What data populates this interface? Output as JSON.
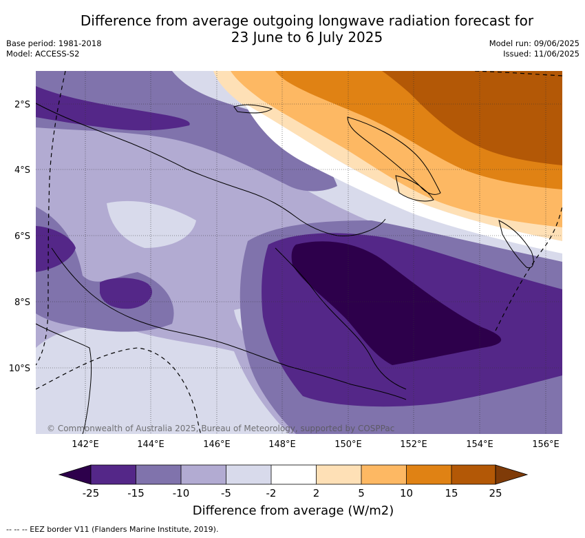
{
  "title": {
    "line1": "Difference from average outgoing longwave radiation forecast for",
    "line2": "23 June to 6 July 2025"
  },
  "meta_left": {
    "base_period": "Base period: 1981-2018",
    "model": "Model: ACCESS-S2"
  },
  "meta_right": {
    "model_run": "Model run: 09/06/2025",
    "issued": "Issued: 11/06/2025"
  },
  "map": {
    "lon_range": [
      140.7,
      156.5
    ],
    "lat_range": [
      -12.0,
      -1.0
    ],
    "x_ticks": [
      "142°E",
      "144°E",
      "146°E",
      "148°E",
      "150°E",
      "152°E",
      "154°E",
      "156°E"
    ],
    "y_ticks": [
      "2°S",
      "4°S",
      "6°S",
      "8°S",
      "10°S"
    ],
    "copyright": "© Commonwealth of Australia 2025, Bureau of Meteorology, supported by COSPPac"
  },
  "colorbar": {
    "title": "Difference from average (W/m2)",
    "labels": [
      "-25",
      "-15",
      "-10",
      "-5",
      "-2",
      "2",
      "5",
      "10",
      "15",
      "25"
    ],
    "colors": {
      "below_min": "#2d004b",
      "neg_25_15": "#542788",
      "neg_15_10": "#8073ac",
      "neg_10_5": "#b2abd2",
      "neg_5_2": "#d8daeb",
      "neg_2_pos_2": "#ffffff",
      "pos_2_5": "#fee0b6",
      "pos_5_10": "#fdb863",
      "pos_10_15": "#e08214",
      "pos_15_25": "#b35806",
      "above_max": "#7f3b08"
    }
  },
  "legend_note": "-- -- -- EEZ border V11 (Flanders Marine Institute, 2019)."
}
